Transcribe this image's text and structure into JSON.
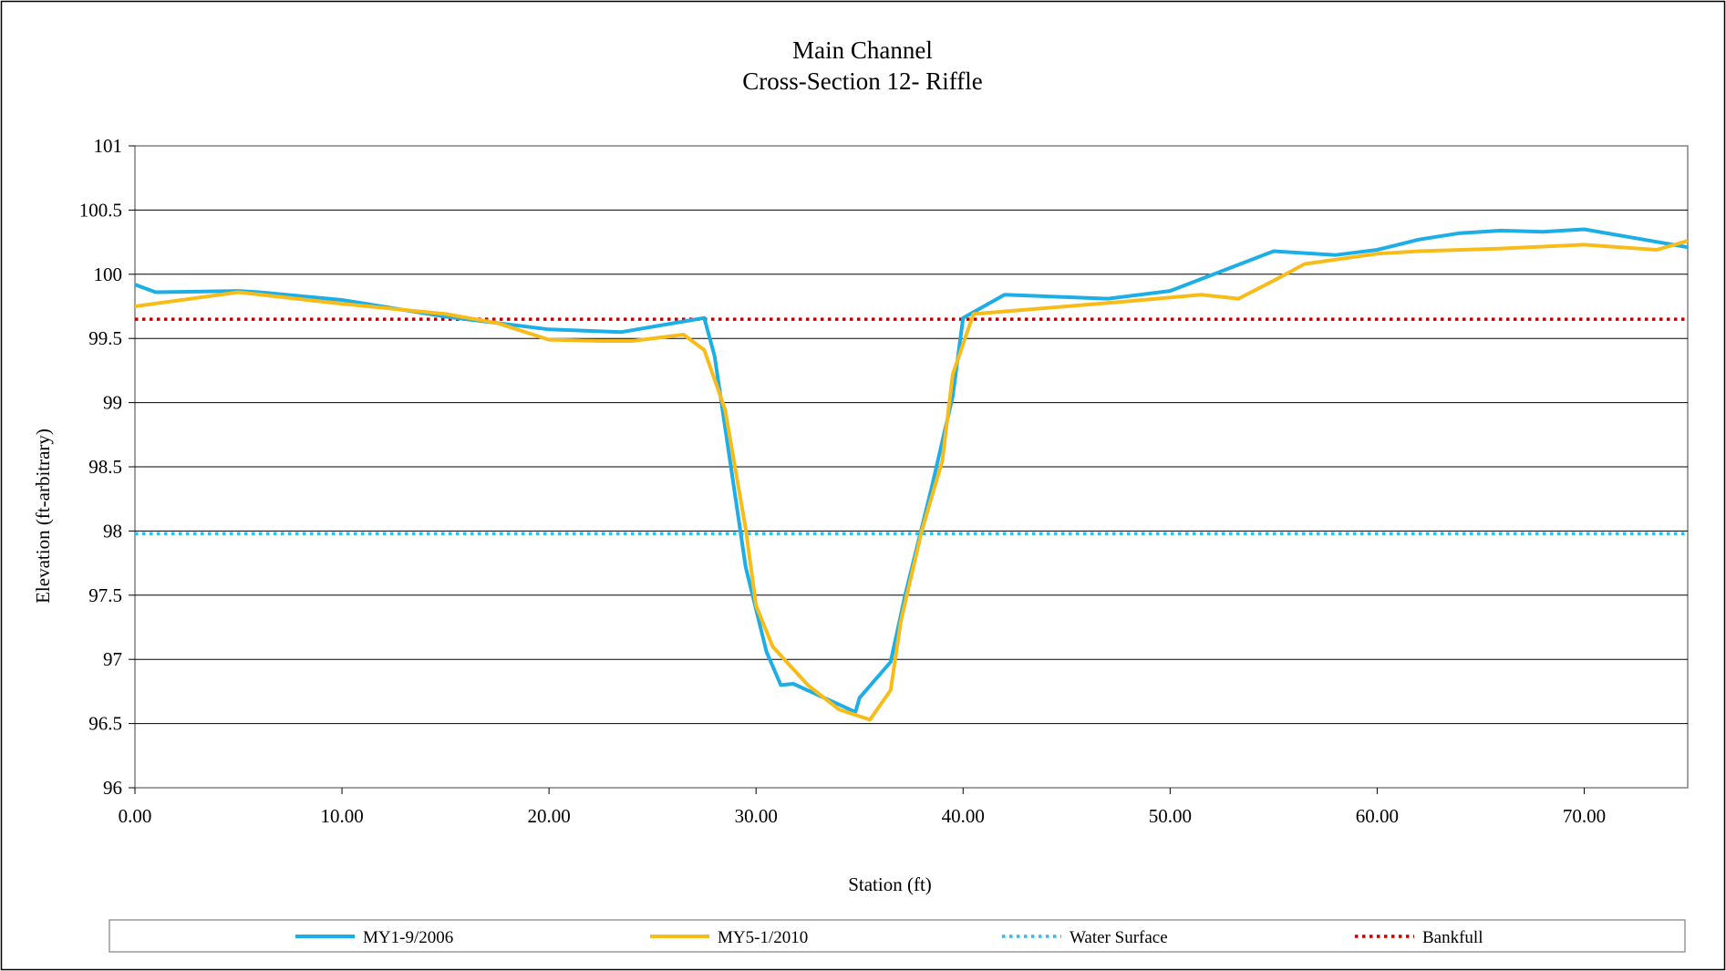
{
  "chart_data": {
    "type": "line",
    "title": "Main Channel",
    "subtitle": "Cross-Section 12- Riffle",
    "xlabel": "Station (ft)",
    "ylabel": "Elevation (ft-arbitrary)",
    "xlim": [
      0,
      75
    ],
    "ylim": [
      96,
      101
    ],
    "x_ticks": [
      0,
      10,
      20,
      30,
      40,
      50,
      60,
      70
    ],
    "x_tick_labels": [
      "0.00",
      "10.00",
      "20.00",
      "30.00",
      "40.00",
      "50.00",
      "60.00",
      "70.00"
    ],
    "y_ticks": [
      96,
      96.5,
      97,
      97.5,
      98,
      98.5,
      99,
      99.5,
      100,
      100.5,
      101
    ],
    "y_tick_labels": [
      "96",
      "96.5",
      "97",
      "97.5",
      "98",
      "98.5",
      "99",
      "99.5",
      "100",
      "100.5",
      "101"
    ],
    "grid": "horizontal",
    "legend_position": "bottom",
    "series": [
      {
        "name": "MY1-9/2006",
        "color": "#1EAEE6",
        "style": "solid",
        "points": [
          [
            0,
            99.92
          ],
          [
            1,
            99.86
          ],
          [
            5,
            99.87
          ],
          [
            6,
            99.86
          ],
          [
            10,
            99.8
          ],
          [
            15,
            99.67
          ],
          [
            18,
            99.61
          ],
          [
            20,
            99.57
          ],
          [
            23.5,
            99.55
          ],
          [
            27.5,
            99.66
          ],
          [
            28,
            99.36
          ],
          [
            29.5,
            97.72
          ],
          [
            30.5,
            97.06
          ],
          [
            31.2,
            96.8
          ],
          [
            31.8,
            96.81
          ],
          [
            34.8,
            96.59
          ],
          [
            35,
            96.7
          ],
          [
            36.5,
            96.98
          ],
          [
            37.2,
            97.5
          ],
          [
            38.5,
            98.35
          ],
          [
            39.5,
            99.05
          ],
          [
            40,
            99.66
          ],
          [
            42,
            99.84
          ],
          [
            47,
            99.81
          ],
          [
            50,
            99.87
          ],
          [
            55,
            100.18
          ],
          [
            58,
            100.15
          ],
          [
            60,
            100.19
          ],
          [
            62,
            100.27
          ],
          [
            64,
            100.32
          ],
          [
            66,
            100.34
          ],
          [
            68,
            100.33
          ],
          [
            70,
            100.35
          ],
          [
            75,
            100.21
          ]
        ]
      },
      {
        "name": "MY5-1/2010",
        "color": "#F8BC1A",
        "style": "solid",
        "points": [
          [
            0,
            99.75
          ],
          [
            5,
            99.86
          ],
          [
            10,
            99.77
          ],
          [
            15,
            99.69
          ],
          [
            17.5,
            99.62
          ],
          [
            20,
            99.49
          ],
          [
            22.5,
            99.48
          ],
          [
            24,
            99.48
          ],
          [
            26.5,
            99.53
          ],
          [
            27.5,
            99.41
          ],
          [
            28.5,
            98.95
          ],
          [
            29.5,
            98.02
          ],
          [
            30,
            97.42
          ],
          [
            30.8,
            97.1
          ],
          [
            32.5,
            96.8
          ],
          [
            34,
            96.61
          ],
          [
            35.5,
            96.53
          ],
          [
            36.5,
            96.76
          ],
          [
            37,
            97.3
          ],
          [
            38,
            98.0
          ],
          [
            39,
            98.55
          ],
          [
            39.5,
            99.22
          ],
          [
            40.5,
            99.69
          ],
          [
            45,
            99.75
          ],
          [
            48,
            99.79
          ],
          [
            51.5,
            99.84
          ],
          [
            53.3,
            99.81
          ],
          [
            55,
            99.95
          ],
          [
            56.5,
            100.08
          ],
          [
            60,
            100.16
          ],
          [
            62,
            100.18
          ],
          [
            66,
            100.2
          ],
          [
            70,
            100.23
          ],
          [
            73.5,
            100.19
          ],
          [
            75,
            100.26
          ]
        ]
      },
      {
        "name": "Water Surface",
        "color": "#27C0F0",
        "style": "dotted",
        "points": [
          [
            0,
            97.98
          ],
          [
            75,
            97.98
          ]
        ]
      },
      {
        "name": "Bankfull",
        "color": "#C00000",
        "style": "dotted",
        "points": [
          [
            0,
            99.65
          ],
          [
            75,
            99.65
          ]
        ]
      }
    ]
  }
}
